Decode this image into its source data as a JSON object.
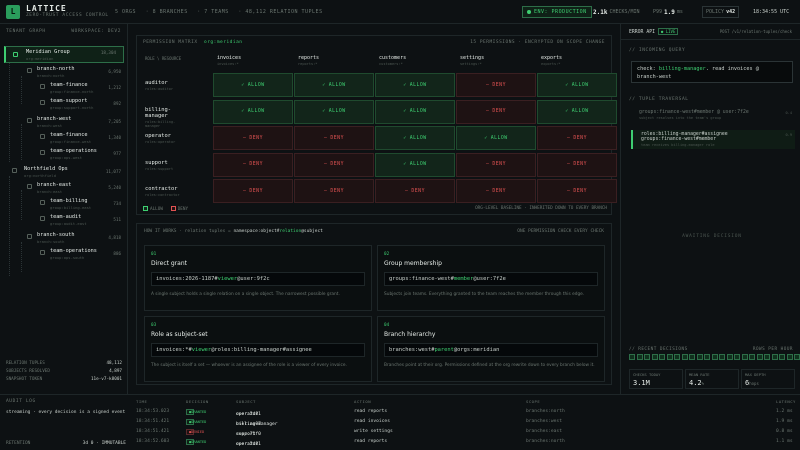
{
  "header": {
    "logo_letter": "L",
    "brand": "LATTICE",
    "tagline": "ZERO-TRUST ACCESS CONTROL",
    "stats": [
      "5 ORGS",
      "· 8 BRANCHES",
      "· 7 TEAMS",
      "· 48,112 RELATION TUPLES"
    ],
    "env": "ENV: PRODUCTION",
    "checks_value": "2.1k",
    "checks_label": "CHECKS/MIN",
    "p99_label": "P99",
    "p99_value": "1.9",
    "p99_unit": "ms",
    "policy_label": "POLICY",
    "policy_value": "v42",
    "clock": "18:34:55 UTC"
  },
  "left": {
    "title": "TENANT GRAPH",
    "subtitle": "WORKSPACE: DEV2",
    "nodes": [
      {
        "name": "Meridian Group",
        "sub": "org:meridian",
        "count": "18,304"
      },
      {
        "name": "branch-north",
        "sub": "branch:north",
        "count": "6,950"
      },
      {
        "name": "team-finance",
        "sub": "group:finance-north",
        "count": "1,212"
      },
      {
        "name": "team-support",
        "sub": "group:support-north",
        "count": "892"
      },
      {
        "name": "branch-west",
        "sub": "branch:west",
        "count": "7,205"
      },
      {
        "name": "team-finance",
        "sub": "group:finance-west",
        "count": "1,340"
      },
      {
        "name": "team-operations",
        "sub": "group:ops-west",
        "count": "977"
      },
      {
        "name": "Northfield Ops",
        "sub": "org:northfield",
        "count": "11,077"
      },
      {
        "name": "branch-east",
        "sub": "branch:east",
        "count": "5,240"
      },
      {
        "name": "team-billing",
        "sub": "group:billing-east",
        "count": "734"
      },
      {
        "name": "team-audit",
        "sub": "group:audit-east",
        "count": "511"
      },
      {
        "name": "branch-south",
        "sub": "branch:south",
        "count": "4,818"
      },
      {
        "name": "team-operations",
        "sub": "group:ops-south",
        "count": "886"
      }
    ],
    "stats": [
      {
        "label": "RELATION TUPLES",
        "value": "48,112"
      },
      {
        "label": "SUBJECTS RESOLVED",
        "value": "4,897"
      },
      {
        "label": "SNAPSHOT TOKEN",
        "value": "11e-v7-k8001"
      }
    ]
  },
  "matrix": {
    "title": "PERMISSION MATRIX",
    "scope": "org:meridian",
    "summary": "15 PERMISSIONS · ENCRYPTED ON SCOPE CHANGE",
    "corner": "ROLE \\ RESOURCE",
    "columns": [
      {
        "name": "invoices",
        "sub": "invoices:*"
      },
      {
        "name": "reports",
        "sub": "reports:*"
      },
      {
        "name": "customers",
        "sub": "customers:*"
      },
      {
        "name": "settings",
        "sub": "settings:*"
      },
      {
        "name": "exports",
        "sub": "exports:*"
      }
    ],
    "rows": [
      {
        "name": "auditor",
        "sub": "roles:auditor",
        "cells": [
          "ALLOW",
          "ALLOW",
          "ALLOW",
          "DENY",
          "ALLOW"
        ]
      },
      {
        "name": "billing-manager",
        "sub": "roles:billing-manager",
        "cells": [
          "ALLOW",
          "ALLOW",
          "ALLOW",
          "DENY",
          "ALLOW"
        ]
      },
      {
        "name": "operator",
        "sub": "roles:operator",
        "cells": [
          "DENY",
          "DENY",
          "ALLOW",
          "ALLOW",
          "DENY"
        ]
      },
      {
        "name": "support",
        "sub": "roles:support",
        "cells": [
          "DENY",
          "DENY",
          "ALLOW",
          "DENY",
          "DENY"
        ]
      },
      {
        "name": "contractor",
        "sub": "roles:contractor",
        "cells": [
          "DENY",
          "DENY",
          "DENY",
          "DENY",
          "DENY"
        ]
      }
    ],
    "legend_allow": "ALLOW",
    "legend_deny": "DENY",
    "footer_note": "ORG-LEVEL BASELINE · INHERITED DOWN TO EVERY BRANCH"
  },
  "how": {
    "title": "HOW IT WORKS",
    "desc": "· relation tuples =",
    "syntax_pre": "namespace:object#",
    "syntax_rel": "relation",
    "syntax_post": "@subject",
    "right": "ONE PERMISSION CHECK EVERY CHECK",
    "cards": [
      {
        "num": "01",
        "title": "Direct grant",
        "code_pre": "invoices:2026-1187#",
        "code_rel": "viewer",
        "code_post": "@user:9f2c",
        "desc": "A single subject holds a single relation on a single object. The narrowest possible grant."
      },
      {
        "num": "02",
        "title": "Group membership",
        "code_pre": "groups:finance-west#",
        "code_rel": "member",
        "code_post": "@user:7f2e",
        "desc": "Subjects join teams. Everything granted to the team reaches the member through this edge."
      },
      {
        "num": "03",
        "title": "Role as subject-set",
        "code_pre": "invoices:*#",
        "code_rel": "viewer",
        "code_post": "@roles:billing-manager#assignee",
        "desc": "The subject is itself a set — whoever is an assignee of the role is a viewer of every invoice."
      },
      {
        "num": "04",
        "title": "Branch hierarchy",
        "code_pre": "branches:west#",
        "code_rel": "parent",
        "code_post": "@orgs:meridian",
        "desc": "Branches point at their org. Permissions defined at the org rewrite down to every branch below it."
      }
    ]
  },
  "right": {
    "title": "ERROR API",
    "live": "LIVE",
    "endpoint": "POST /v1/relation-tuples/check",
    "incoming_title": "// INCOMING QUERY",
    "query_pre": "check:",
    "query_user": "billing-manager",
    "query_mid": ". read invoices @",
    "query_post": "branch-west",
    "traversal_title": "// TUPLE TRAVERSAL",
    "traversal": [
      {
        "text": "groups:finance-west#member @ user:7f2e",
        "sub": "subject resolves into the team's group",
        "ms": "0.4"
      },
      {
        "text": "roles:billing-manager#assignee",
        "sub": "",
        "ms": "0.9"
      },
      {
        "text": "groups:finance-west#member",
        "sub": "team receives billing-manager role",
        "ms": ""
      }
    ],
    "awaiting": "AWAITING DECISION",
    "recent_title": "// RECENT DECISIONS",
    "recent_right": "ROWS PER HOUR",
    "recent_count": 24,
    "kpis": [
      {
        "label": "CHECKS TODAY",
        "value": "3.1M",
        "unit": ""
      },
      {
        "label": "MEAN RATE",
        "value": "4.2",
        "unit": "%"
      },
      {
        "label": "MAX DEPTH",
        "value": "6",
        "unit": "hops"
      }
    ]
  },
  "audit": {
    "title": "AUDIT LOG",
    "desc": "streaming · every decision is a signed event",
    "retention_label": "RETENTION",
    "retention_value": "3d 0 · IMMUTABLE"
  },
  "log": {
    "headers": [
      "TIME",
      "DECISION",
      "SUBJECT",
      "ACTION",
      "SCOPE",
      "LATENCY"
    ],
    "rows": [
      {
        "time": "18:34:53.023",
        "decision": "GRANTED",
        "ok": true,
        "user": "user:2d81",
        "as": "as",
        "role": "operator",
        "action": "read reports",
        "scope": "branches:north",
        "latency": "1.2 ms"
      },
      {
        "time": "18:34:51.421",
        "decision": "GRANTED",
        "ok": true,
        "user": "user:aa07",
        "as": "as",
        "role": "billing-manager",
        "action": "read invoices",
        "scope": "branches:west",
        "latency": "1.9 ms"
      },
      {
        "time": "18:34:51.421",
        "decision": "DENIED",
        "ok": false,
        "user": "user:71f0",
        "as": "as",
        "role": "support",
        "action": "write settings",
        "scope": "branches:east",
        "latency": "0.8 ms"
      },
      {
        "time": "18:34:52.603",
        "decision": "GRANTED",
        "ok": true,
        "user": "user:2d81",
        "as": "as",
        "role": "operator",
        "action": "read reports",
        "scope": "branches:north",
        "latency": "1.1 ms"
      }
    ]
  },
  "colors": {
    "accent": "#3ecf71",
    "deny": "#e05252",
    "bg": "#0d1113"
  }
}
